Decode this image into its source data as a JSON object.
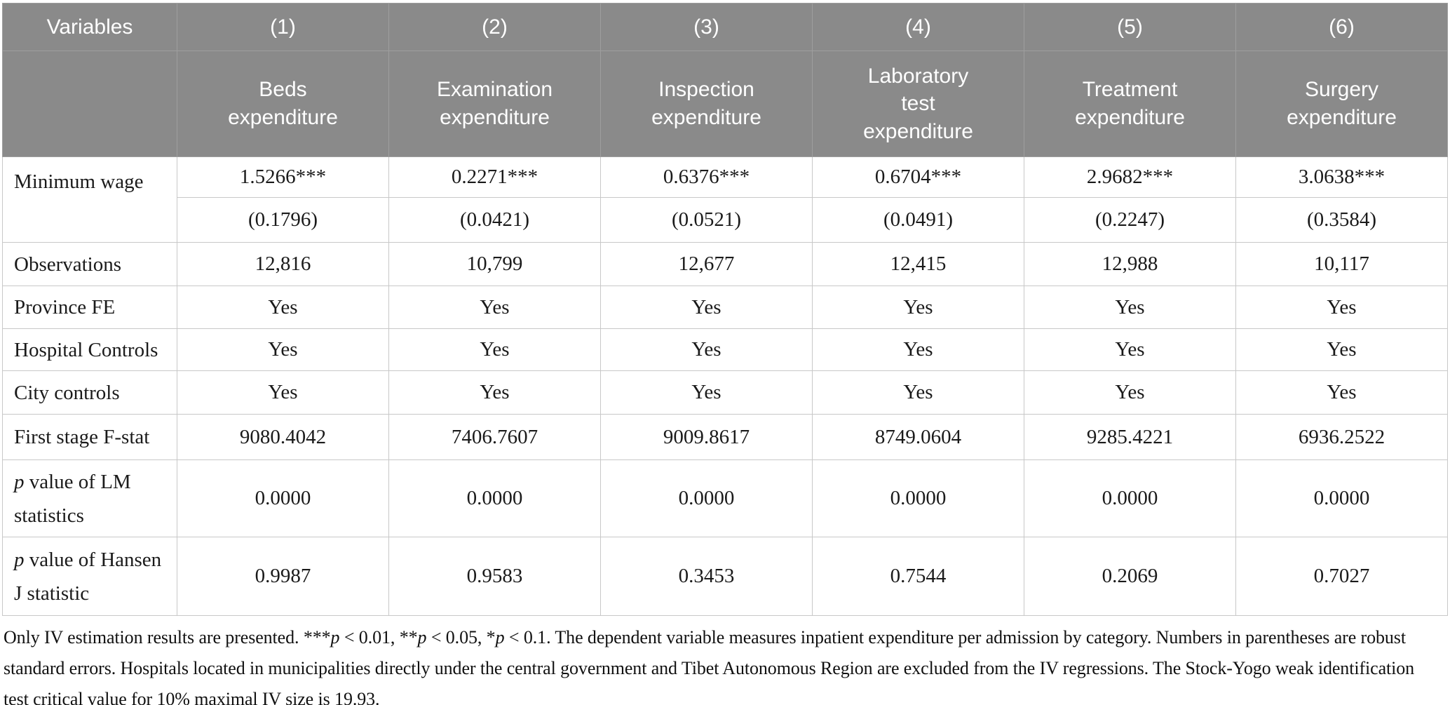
{
  "table": {
    "header": {
      "variables_label": "Variables",
      "model_numbers": [
        "(1)",
        "(2)",
        "(3)",
        "(4)",
        "(5)",
        "(6)"
      ],
      "dep_vars": [
        "Beds\nexpenditure",
        "Examination\nexpenditure",
        "Inspection\nexpenditure",
        "Laboratory\ntest\nexpenditure",
        "Treatment\nexpenditure",
        "Surgery\nexpenditure"
      ]
    },
    "minimum_wage": {
      "label": "Minimum wage",
      "coefficients": [
        "1.5266***",
        "0.2271***",
        "0.6376***",
        "0.6704***",
        "2.9682***",
        "3.0638***"
      ],
      "std_errors": [
        "(0.1796)",
        "(0.0421)",
        "(0.0521)",
        "(0.0491)",
        "(0.2247)",
        "(0.3584)"
      ]
    },
    "rows": [
      {
        "label": "Observations",
        "values": [
          "12,816",
          "10,799",
          "12,677",
          "12,415",
          "12,988",
          "10,117"
        ]
      },
      {
        "label": "Province FE",
        "values": [
          "Yes",
          "Yes",
          "Yes",
          "Yes",
          "Yes",
          "Yes"
        ]
      },
      {
        "label": "Hospital Controls",
        "values": [
          "Yes",
          "Yes",
          "Yes",
          "Yes",
          "Yes",
          "Yes"
        ]
      },
      {
        "label": "City controls",
        "values": [
          "Yes",
          "Yes",
          "Yes",
          "Yes",
          "Yes",
          "Yes"
        ]
      },
      {
        "label": "First stage F-stat",
        "values": [
          "9080.4042",
          "7406.7607",
          "9009.8617",
          "8749.0604",
          "9285.4221",
          "6936.2522"
        ]
      },
      {
        "label_italic": "p",
        "label_rest": " value of LM\nstatistics",
        "values": [
          "0.0000",
          "0.0000",
          "0.0000",
          "0.0000",
          "0.0000",
          "0.0000"
        ]
      },
      {
        "label_italic": "p",
        "label_rest": " value of Hansen\nJ statistic",
        "values": [
          "0.9987",
          "0.9583",
          "0.3453",
          "0.7544",
          "0.2069",
          "0.7027"
        ]
      }
    ]
  },
  "note": {
    "parts": [
      "Only IV estimation results are presented. ***",
      "p",
      " < 0.01, **",
      "p",
      " < 0.05, *",
      "p",
      " < 0.1. The dependent variable measures inpatient expenditure per admission by category. Numbers in parentheses are robust standard errors. Hospitals located in municipalities directly under the central government and Tibet Autonomous Region are excluded from the IV regressions. The Stock-Yogo weak identification test critical value for 10% maximal IV size is 19.93."
    ]
  },
  "colors": {
    "header_bg": "#8a8a8a",
    "header_border": "#9e9e9e",
    "body_border": "#c8c8c8",
    "header_text": "#ffffff",
    "body_text": "#1a1a1a"
  }
}
